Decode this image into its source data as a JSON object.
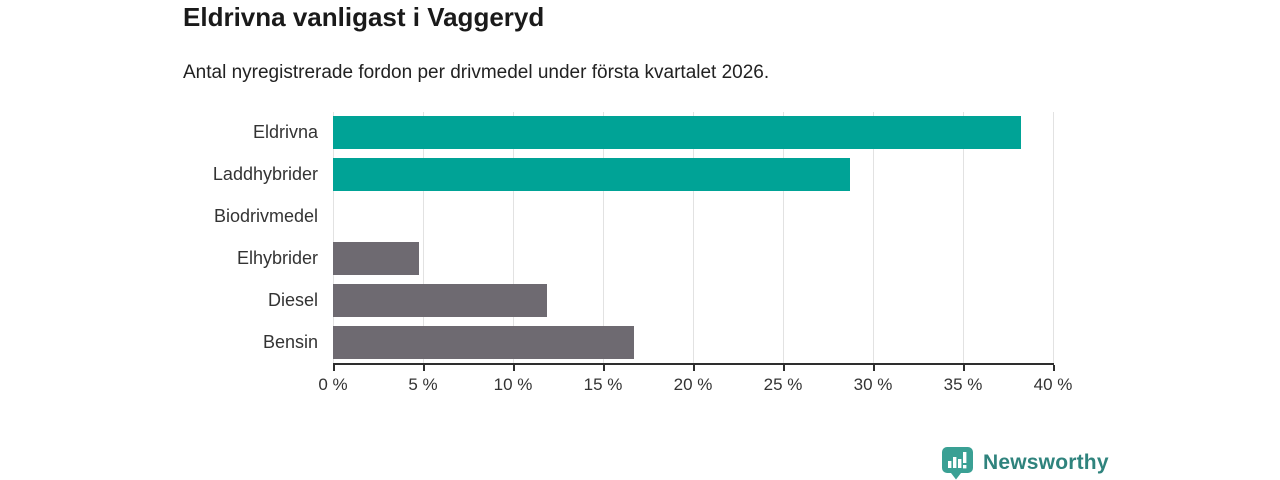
{
  "header": {
    "title": "Eldrivna vanligast i Vaggeryd",
    "subtitle": "Antal nyregistrerade fordon per drivmedel under första kvartalet 2026."
  },
  "chart_data": {
    "type": "bar",
    "orientation": "horizontal",
    "title": "Eldrivna vanligast i Vaggeryd",
    "subtitle": "Antal nyregistrerade fordon per drivmedel under första kvartalet 2026.",
    "categories": [
      "Eldrivna",
      "Laddhybrider",
      "Biodrivmedel",
      "Elhybrider",
      "Diesel",
      "Bensin"
    ],
    "values": [
      38.2,
      28.7,
      0,
      4.8,
      11.9,
      16.7
    ],
    "unit": "%",
    "xlim": [
      0,
      40
    ],
    "x_ticks": [
      0,
      5,
      10,
      15,
      20,
      25,
      30,
      35,
      40
    ],
    "x_tick_labels": [
      "0 %",
      "5 %",
      "10 %",
      "15 %",
      "20 %",
      "25 %",
      "30 %",
      "35 %",
      "40 %"
    ],
    "xlabel": "",
    "ylabel": "",
    "grid": "vertical",
    "legend": "none",
    "bar_colors": [
      "#00a396",
      "#00a396",
      "#00a396",
      "#6e6a71",
      "#6e6a71",
      "#6e6a71"
    ],
    "highlight_color": "#00a396",
    "default_color": "#6e6a71"
  },
  "style": {
    "gridline_color": "#e2e2e2",
    "axis_color": "#2e2e2e",
    "label_color": "#333333",
    "title_color": "#1a1a1a"
  },
  "footer": {
    "brand": "Newsworthy",
    "brand_color": "#2f837d",
    "icon_color": "#3aa094",
    "icon": "newsworthy-chart-bubble-icon"
  }
}
